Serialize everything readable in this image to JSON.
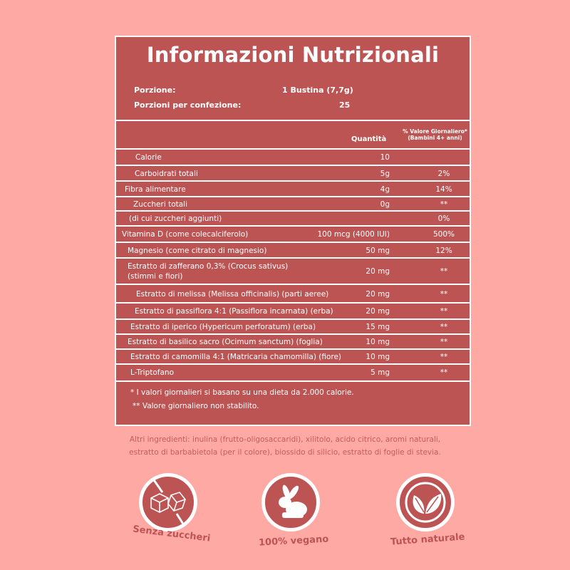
{
  "title": "Informazioni Nutrizionali",
  "serving": {
    "label1": "Porzione:",
    "value1": "1 Bustina (7,7g)",
    "label2": "Porzioni per confezione:",
    "value2": "25"
  },
  "header": {
    "quantity": "Quantità",
    "dv1": "% Valore Giornaliero*",
    "dv2": "(Bambini 4+ anni)"
  },
  "rows": [
    {
      "name": "Calorie",
      "qty": "10",
      "dv": ""
    },
    {
      "name": "Carboidrati totali",
      "qty": "5g",
      "dv": "2%"
    },
    {
      "name": "Fibra alimentare",
      "qty": "4g",
      "dv": "14%"
    },
    {
      "name": "Zuccheri totali",
      "qty": "0g",
      "dv": "**"
    },
    {
      "name": "(di cui zuccheri aggiunti)",
      "qty": "",
      "dv": "0%"
    },
    {
      "name": "Vitamina D (come colecalciferolo)",
      "qty": "100 mcg (4000 IUI)",
      "dv": "500%"
    },
    {
      "name": "Magnesio (come citrato di magnesio)",
      "qty": "50 mg",
      "dv": "12%"
    },
    {
      "name": "Estratto di zafferano 0,3% (Crocus sativus)\n(stimmi e fiori)",
      "qty": "20 mg",
      "dv": "**"
    },
    {
      "name": "Estratto di melissa (Melissa officinalis) (parti aeree)",
      "qty": "20 mg",
      "dv": "**"
    },
    {
      "name": "Estratto di passiflora 4:1 (Passiflora incarnata) (erba)",
      "qty": "20 mg",
      "dv": "**"
    },
    {
      "name": "Estratto di iperico (Hypericum perforatum) (erba)",
      "qty": "15 mg",
      "dv": "**"
    },
    {
      "name": "Estratto di basilico sacro (Ocimum sanctum) (foglia)",
      "qty": "10 mg",
      "dv": "**"
    },
    {
      "name": "Estratto di camomilla 4:1 (Matricaria chamomilla) (fiore)",
      "qty": "10 mg",
      "dv": "**"
    },
    {
      "name": "L-Triptofano",
      "qty": "5 mg",
      "dv": "**"
    }
  ],
  "footnotes": [
    "* I valori giornalieri si basano su una dieta da 2.000 calorie.",
    "** Valore giornaliero non stabilito."
  ],
  "ingredients": [
    "Altri ingredienti: inulina (frutto-oligosaccaridi), xilitolo, acido citrico, aromi naturali,",
    "estratto di barbabietola (per il colore), biossido di silicio, estratto di foglie di stevia."
  ],
  "badges": [
    {
      "label": "Senza zuccheri",
      "icon": "no-sugar-cubes-icon"
    },
    {
      "label": "100% vegano",
      "icon": "rabbit-icon"
    },
    {
      "label": "Tutto naturale",
      "icon": "leaves-icon"
    }
  ],
  "colors": {
    "background": "#ffa9a4",
    "panel": "#bc5454",
    "text": "#ffffff"
  }
}
